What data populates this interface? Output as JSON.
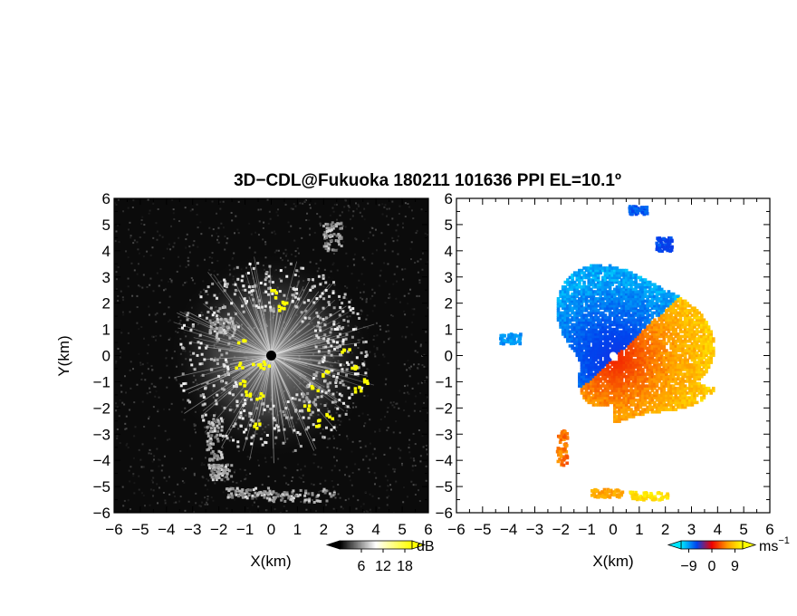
{
  "title": "3D−CDL@Fukuoka 180211 101636 PPI EL=10.1º",
  "chart_data": [
    {
      "type": "heatmap",
      "panel": "left",
      "quantity": "echo intensity",
      "x": {
        "label": "X(km)",
        "range": [
          -6,
          6
        ],
        "ticks": [
          "−6",
          "−5",
          "−4",
          "−3",
          "−2",
          "−1",
          "0",
          "1",
          "2",
          "3",
          "4",
          "5",
          "6"
        ]
      },
      "y": {
        "label": "Y(km)",
        "range": [
          -6,
          6
        ],
        "ticks": [
          "−6",
          "−5",
          "−4",
          "−3",
          "−2",
          "−1",
          "0",
          "1",
          "2",
          "3",
          "4",
          "5",
          "6"
        ]
      },
      "colorbar": {
        "unit": "dB",
        "range": [
          0,
          20
        ],
        "ticks": [
          "6",
          "12",
          "18"
        ],
        "colors": [
          "#000000",
          "#ffffff",
          "#ffff00"
        ]
      },
      "colormap": "grayscale to yellow",
      "grid": false,
      "radar_center": [
        0,
        0
      ]
    },
    {
      "type": "heatmap",
      "panel": "right",
      "quantity": "radial velocity",
      "x": {
        "label": "X(km)",
        "range": [
          -6,
          6
        ],
        "ticks": [
          "−6",
          "−5",
          "−4",
          "−3",
          "−2",
          "−1",
          "0",
          "1",
          "2",
          "3",
          "4",
          "5",
          "6"
        ]
      },
      "y": {
        "label": "",
        "range": [
          -6,
          6
        ],
        "ticks": [
          "−6",
          "−5",
          "−4",
          "−3",
          "−2",
          "−1",
          "0",
          "1",
          "2",
          "3",
          "4",
          "5",
          "6"
        ]
      },
      "colorbar": {
        "unit": "ms",
        "unit_exponent": "−1",
        "range": [
          -12,
          12
        ],
        "ticks": [
          "−9",
          "0",
          "9"
        ],
        "colors": [
          "#00e6ff",
          "#0044ee",
          "#ee0000",
          "#ff9900",
          "#ffff00"
        ]
      },
      "colormap": "cyan-blue (negative) to red-orange-yellow (positive)",
      "grid": false,
      "radar_center": [
        0,
        0
      ]
    }
  ]
}
